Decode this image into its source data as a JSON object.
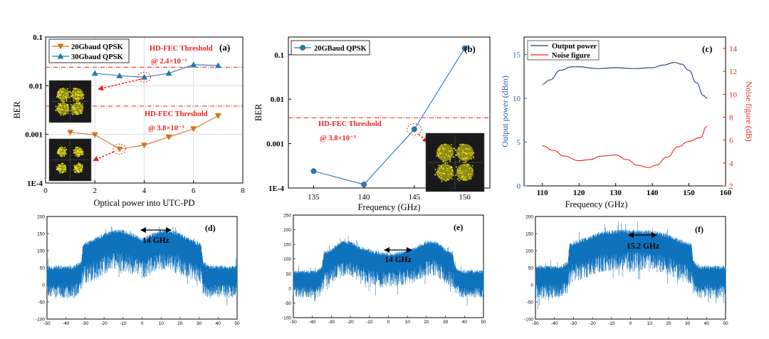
{
  "colors": {
    "orange": "#d9701a",
    "blue": "#2479b3",
    "red": "#e8251f",
    "spectrum": "#0f72bd",
    "grid": "#d9d9d9",
    "const_bg": "#1a1a1a",
    "const_dot": "#f2e81a"
  },
  "chart_data": [
    {
      "panel": "a",
      "type": "line",
      "label": "(a)",
      "xlabel": "Optical power into UTC-PD",
      "ylabel": "BER",
      "xlim": [
        0,
        8
      ],
      "ylim": [
        0.0001,
        0.1
      ],
      "yscale": "log",
      "xticks": [
        "0",
        "2",
        "4",
        "6",
        "8"
      ],
      "yticks": [
        {
          "v": 0.1,
          "t": "0.1"
        },
        {
          "v": 0.01,
          "t": "0.01"
        },
        {
          "v": 0.001,
          "t": "0.001"
        },
        {
          "v": 0.0001,
          "t": "1E-4"
        }
      ],
      "series": [
        {
          "name": "20Gbaud QPSK",
          "marker": "triangle-down",
          "x": [
            1,
            2,
            3,
            4,
            5,
            6,
            7
          ],
          "y": [
            0.0011,
            0.00098,
            0.0005,
            0.0006,
            0.00088,
            0.0013,
            0.0024
          ]
        },
        {
          "name": "30Gbaud QPSK",
          "marker": "triangle-up",
          "x": [
            2,
            3,
            4,
            5,
            6,
            7
          ],
          "y": [
            0.018,
            0.016,
            0.015,
            0.018,
            0.027,
            0.026
          ]
        }
      ],
      "thresholds": [
        {
          "value": 0.024,
          "label": "HD-FEC Threshold",
          "sublabel": "@ 2.4×10⁻²"
        },
        {
          "value": 0.0038,
          "label": "HD-FEC Threshold",
          "sublabel": "@ 3.8×10⁻³"
        }
      ]
    },
    {
      "panel": "b",
      "type": "line",
      "label": "(b)",
      "xlabel": "Frequency (GHz)",
      "ylabel": "BER",
      "xlim": [
        132.5,
        152.5
      ],
      "ylim": [
        0.0001,
        0.25
      ],
      "yscale": "log",
      "xticks": [
        "135",
        "140",
        "145",
        "150"
      ],
      "yticks": [
        {
          "v": 0.1,
          "t": "0.1"
        },
        {
          "v": 0.01,
          "t": "0.01"
        },
        {
          "v": 0.001,
          "t": "0.001"
        },
        {
          "v": 0.0001,
          "t": "1E-4"
        }
      ],
      "series": [
        {
          "name": "20GBaud QPSK",
          "marker": "circle",
          "x": [
            135,
            140,
            145,
            150
          ],
          "y": [
            0.00024,
            0.00012,
            0.0021,
            0.14
          ]
        }
      ],
      "thresholds": [
        {
          "value": 0.0038,
          "label": "HD-FEC Threshold",
          "sublabel": "@ 3.8×10⁻³"
        }
      ]
    },
    {
      "panel": "c",
      "type": "line",
      "label": "(c)",
      "xlabel": "Frequency (GHz)",
      "ylabel": "Output power (dBm)",
      "ylabel_right": "Noise figure (dB)",
      "xlim": [
        105,
        160
      ],
      "ylim": [
        0,
        17
      ],
      "ylim_right": [
        2,
        15
      ],
      "xticks": [
        "110",
        "120",
        "130",
        "140",
        "150",
        "160"
      ],
      "yticks": [
        "0",
        "5",
        "10",
        "15"
      ],
      "yticks_right": [
        "2",
        "4",
        "6",
        "8",
        "10",
        "12",
        "14"
      ],
      "series": [
        {
          "name": "Output power",
          "axis": "left",
          "x": [
            110,
            112,
            115,
            118,
            120,
            125,
            130,
            135,
            140,
            143,
            146,
            148,
            150,
            152,
            154,
            155
          ],
          "y": [
            11.6,
            12.1,
            13.2,
            13.6,
            13.6,
            13.4,
            13.5,
            13.4,
            13.5,
            13.8,
            14.1,
            13.9,
            13.2,
            11.8,
            10.3,
            10.0
          ]
        },
        {
          "name": "Noise figure",
          "axis": "right",
          "x": [
            110,
            113,
            116,
            120,
            123,
            126,
            130,
            133,
            136,
            139,
            141,
            144,
            147,
            150,
            153,
            155
          ],
          "y": [
            5.5,
            5.1,
            4.6,
            4.2,
            4.3,
            4.6,
            4.7,
            4.3,
            3.8,
            3.6,
            3.8,
            4.5,
            5.4,
            5.9,
            6.2,
            7.2
          ]
        }
      ]
    },
    {
      "panel": "d",
      "type": "area",
      "label": "(d)",
      "annotation": "14 GHz",
      "xlim": [
        -50,
        50
      ],
      "ylim": [
        -100,
        200
      ],
      "xticks": [
        "-50",
        "-40",
        "-30",
        "-20",
        "-10",
        "0",
        "10",
        "20",
        "30",
        "40",
        "50"
      ],
      "yticks": [
        "200",
        "150",
        "100",
        "50",
        "0",
        "-50",
        "-100"
      ],
      "envelope": {
        "x": [
          -50,
          -36,
          -32,
          -31,
          -25,
          -20,
          -15,
          -10,
          -5,
          0,
          5,
          10,
          15,
          20,
          25,
          31,
          32,
          36,
          50
        ],
        "y": [
          45,
          45,
          58,
          110,
          125,
          140,
          150,
          150,
          140,
          125,
          140,
          150,
          150,
          140,
          125,
          110,
          58,
          45,
          45
        ]
      }
    },
    {
      "panel": "e",
      "type": "area",
      "label": "(e)",
      "annotation": "14 GHz",
      "xlim": [
        -50,
        50
      ],
      "ylim": [
        -100,
        250
      ],
      "xticks": [
        "-50",
        "-40",
        "-30",
        "-20",
        "-10",
        "0",
        "10",
        "20",
        "30",
        "40",
        "50"
      ],
      "yticks": [
        "250",
        "200",
        "150",
        "100",
        "50",
        "0",
        "-50",
        "-100"
      ],
      "envelope": {
        "x": [
          -50,
          -38,
          -35,
          -34,
          -30,
          -25,
          -20,
          -16,
          -12,
          -8,
          -4,
          0,
          4,
          8,
          12,
          16,
          20,
          25,
          30,
          34,
          35,
          38,
          50
        ],
        "y": [
          50,
          50,
          65,
          110,
          125,
          150,
          150,
          135,
          125,
          118,
          112,
          110,
          112,
          118,
          125,
          135,
          150,
          150,
          125,
          110,
          65,
          50,
          50
        ]
      }
    },
    {
      "panel": "f",
      "type": "area",
      "label": "(f)",
      "annotation": "15.2 GHz",
      "xlim": [
        -50,
        50
      ],
      "ylim": [
        -100,
        200
      ],
      "xticks": [
        "-50",
        "-40",
        "-30",
        "-20",
        "-10",
        "0",
        "10",
        "20",
        "30",
        "40",
        "50"
      ],
      "yticks": [
        "200",
        "150",
        "100",
        "50",
        "0",
        "-50",
        "-100"
      ],
      "envelope": {
        "x": [
          -50,
          -36,
          -33,
          -32,
          -25,
          -15,
          -5,
          0,
          5,
          15,
          25,
          32,
          33,
          36,
          50
        ],
        "y": [
          45,
          45,
          60,
          110,
          125,
          145,
          150,
          150,
          150,
          145,
          125,
          110,
          60,
          45,
          45
        ]
      }
    }
  ]
}
